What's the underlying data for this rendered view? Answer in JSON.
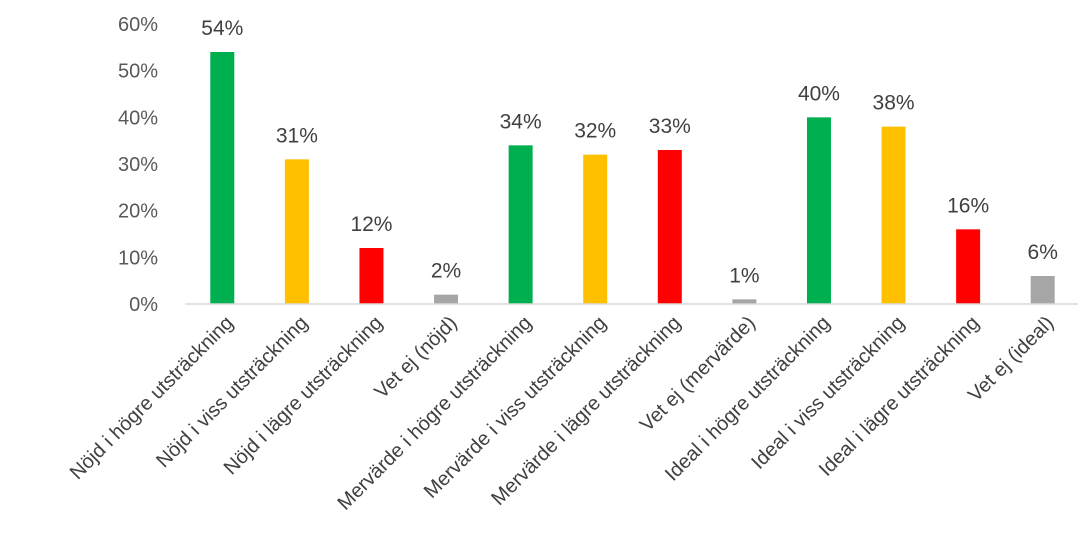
{
  "chart_data": {
    "type": "bar",
    "categories": [
      "Nöjd i högre utsträckning",
      "Nöjd i viss utsträckning",
      "Nöjd i lägre utsträckning",
      "Vet ej (nöjd)",
      "Mervärde i högre utsträckning",
      "Mervärde i viss utsträckning",
      "Mervärde i lägre utsträckning",
      "Vet ej (mervärde)",
      "Ideal i högre utsträckning",
      "Ideal i viss utsträckning",
      "Ideal i lägre utsträckning",
      "Vet ej (ideal)"
    ],
    "values": [
      54,
      31,
      12,
      2,
      34,
      32,
      33,
      1,
      40,
      38,
      16,
      6
    ],
    "data_labels": [
      "54%",
      "31%",
      "12%",
      "2%",
      "34%",
      "32%",
      "33%",
      "1%",
      "40%",
      "38%",
      "16%",
      "6%"
    ],
    "bar_colors": [
      "#00b050",
      "#ffc000",
      "#ff0000",
      "#a6a6a6",
      "#00b050",
      "#ffc000",
      "#ff0000",
      "#a6a6a6",
      "#00b050",
      "#ffc000",
      "#ff0000",
      "#a6a6a6"
    ],
    "y_ticks": [
      "0%",
      "10%",
      "20%",
      "30%",
      "40%",
      "50%",
      "60%"
    ],
    "ylim": [
      0,
      60
    ],
    "title": "",
    "xlabel": "",
    "ylabel": "",
    "grid": false,
    "legend": false
  }
}
